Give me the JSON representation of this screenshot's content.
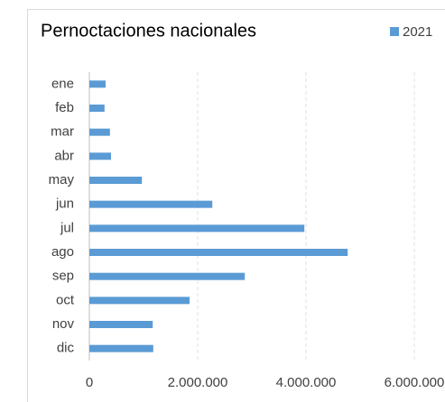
{
  "chart_data": {
    "type": "hbar",
    "title": "Pernoctaciones nacionales",
    "categories": [
      "ene",
      "feb",
      "mar",
      "abr",
      "may",
      "jun",
      "jul",
      "ago",
      "sep",
      "oct",
      "nov",
      "dic"
    ],
    "series": [
      {
        "name": "2021",
        "color": "#5b9bd5",
        "values": [
          300000,
          280000,
          380000,
          400000,
          970000,
          2270000,
          3970000,
          4770000,
          2870000,
          1850000,
          1170000,
          1180000
        ]
      }
    ],
    "xlim": [
      0,
      6000000
    ],
    "xticks": [
      0,
      {
        "value": 2000000,
        "label": "2.000.000"
      },
      {
        "value": 4000000,
        "label": "4.000.000"
      },
      {
        "value": 6000000,
        "label": "6.000.000"
      }
    ],
    "grid": true,
    "legend": "top-right"
  }
}
